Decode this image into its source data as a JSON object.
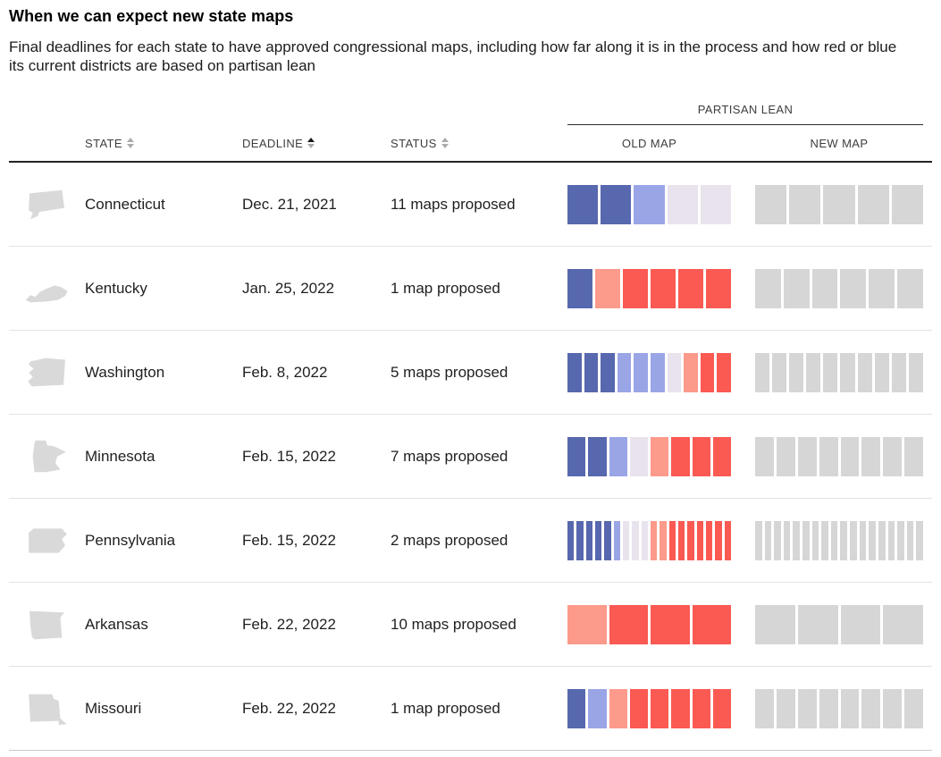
{
  "header": {
    "title": "When we can expect new state maps",
    "subtitle": "Final deadlines for each state to have approved congressional maps, including how far along it is in the process and how red or blue its current districts are based on partisan lean"
  },
  "table": {
    "partisan_lean_label": "PARTISAN LEAN",
    "columns": {
      "state": "STATE",
      "deadline": "DEADLINE",
      "status": "STATUS",
      "old_map": "OLD MAP",
      "new_map": "NEW MAP"
    },
    "sort": {
      "column": "deadline",
      "direction": "ascending"
    }
  },
  "chart_data": {
    "type": "table",
    "title": "When we can expect new state maps",
    "columns": [
      "STATE",
      "DEADLINE",
      "STATUS",
      "OLD MAP",
      "NEW MAP"
    ],
    "lean_color_scale": {
      "strong_blue": "#5768ae",
      "light_blue": "#9aa5e6",
      "pale_neutral": "#e9e3ed",
      "light_red": "#fc9a8b",
      "strong_red": "#fa5a52",
      "unknown": "#d6d6d6"
    },
    "rows": [
      {
        "state": "Connecticut",
        "icon": "connecticut",
        "deadline": "Dec. 21, 2021",
        "status": "11 maps proposed",
        "districts": 5,
        "old_map_lean": [
          "strong_blue",
          "strong_blue",
          "light_blue",
          "pale_neutral",
          "pale_neutral"
        ],
        "new_map_lean": "unknown"
      },
      {
        "state": "Kentucky",
        "icon": "kentucky",
        "deadline": "Jan. 25, 2022",
        "status": "1 map proposed",
        "districts": 6,
        "old_map_lean": [
          "strong_blue",
          "light_red",
          "strong_red",
          "strong_red",
          "strong_red",
          "strong_red"
        ],
        "new_map_lean": "unknown"
      },
      {
        "state": "Washington",
        "icon": "washington",
        "deadline": "Feb. 8, 2022",
        "status": "5 maps proposed",
        "districts": 10,
        "old_map_lean": [
          "strong_blue",
          "strong_blue",
          "strong_blue",
          "light_blue",
          "light_blue",
          "light_blue",
          "pale_neutral",
          "light_red",
          "strong_red",
          "strong_red"
        ],
        "new_map_lean": "unknown"
      },
      {
        "state": "Minnesota",
        "icon": "minnesota",
        "deadline": "Feb. 15, 2022",
        "status": "7 maps proposed",
        "districts": 8,
        "old_map_lean": [
          "strong_blue",
          "strong_blue",
          "light_blue",
          "pale_neutral",
          "light_red",
          "strong_red",
          "strong_red",
          "strong_red"
        ],
        "new_map_lean": "unknown"
      },
      {
        "state": "Pennsylvania",
        "icon": "pennsylvania",
        "deadline": "Feb. 15, 2022",
        "status": "2 maps proposed",
        "districts": 18,
        "old_map_lean": [
          "strong_blue",
          "strong_blue",
          "strong_blue",
          "strong_blue",
          "strong_blue",
          "light_blue",
          "pale_neutral",
          "pale_neutral",
          "pale_neutral",
          "light_red",
          "light_red",
          "strong_red",
          "strong_red",
          "strong_red",
          "strong_red",
          "strong_red",
          "strong_red",
          "strong_red"
        ],
        "new_map_lean": "unknown"
      },
      {
        "state": "Arkansas",
        "icon": "arkansas",
        "deadline": "Feb. 22, 2022",
        "status": "10 maps proposed",
        "districts": 4,
        "old_map_lean": [
          "light_red",
          "strong_red",
          "strong_red",
          "strong_red"
        ],
        "new_map_lean": "unknown"
      },
      {
        "state": "Missouri",
        "icon": "missouri",
        "deadline": "Feb. 22, 2022",
        "status": "1 map proposed",
        "districts": 8,
        "old_map_lean": [
          "strong_blue",
          "light_blue",
          "light_red",
          "strong_red",
          "strong_red",
          "strong_red",
          "strong_red",
          "strong_red"
        ],
        "new_map_lean": "unknown"
      }
    ]
  }
}
